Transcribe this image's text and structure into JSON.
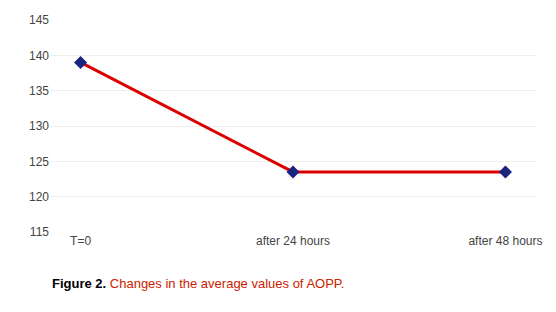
{
  "chart_data": {
    "type": "line",
    "categories": [
      "T=0",
      "after 24 hours",
      "after 48 hours"
    ],
    "values": [
      139,
      123.5,
      123.5
    ],
    "color": "#dd0000",
    "colors": [
      "#1a237e",
      "#1a237e",
      "#1a237e"
    ],
    "marker": "diamond",
    "ylim": [
      115,
      145
    ],
    "yticks": [
      115,
      120,
      125,
      130,
      135,
      140,
      145
    ],
    "grid": true,
    "annotations": [
      {
        "text": "Figure 2.",
        "color": "#000000"
      },
      {
        "text": " Changes in the average values of AOPP.",
        "color": "#cc2200"
      }
    ]
  }
}
